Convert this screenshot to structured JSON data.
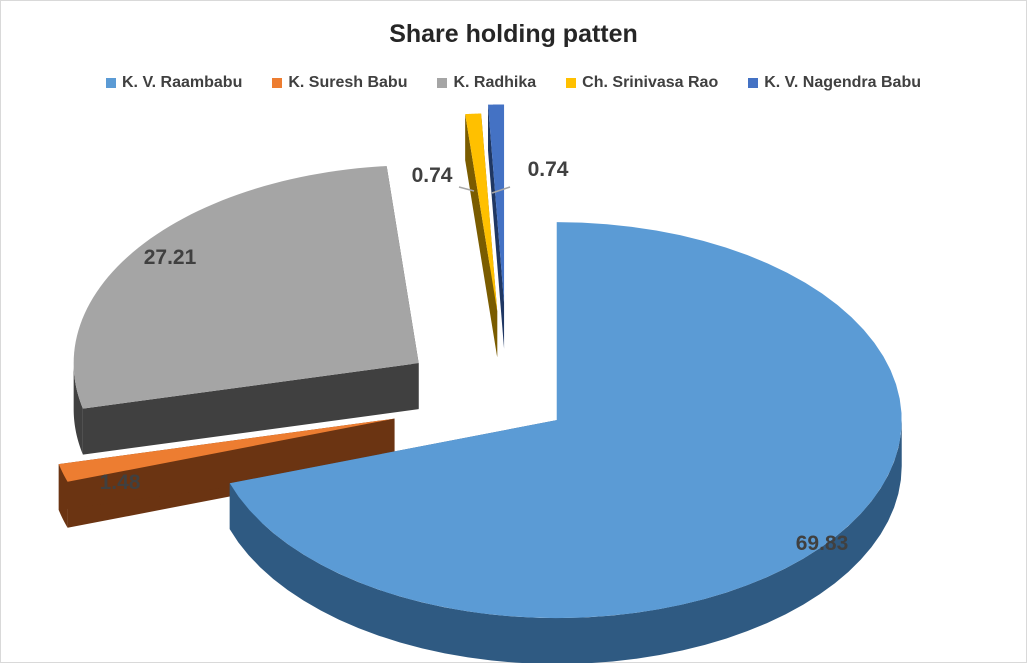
{
  "chart_data": {
    "type": "pie",
    "title": "Share holding patten",
    "legend_position": "top",
    "slices": [
      {
        "label": "K. V. Raambabu",
        "value": 69.83,
        "value_label": "69.83",
        "color": "#5B9BD5",
        "side_color": "#2F5A82"
      },
      {
        "label": "K. Suresh Babu",
        "value": 1.48,
        "value_label": "1.48",
        "color": "#ED7D31",
        "side_color": "#6B3412"
      },
      {
        "label": "K. Radhika",
        "value": 27.21,
        "value_label": "27.21",
        "color": "#A5A5A5",
        "side_color": "#404040"
      },
      {
        "label": "Ch. Srinivasa Rao",
        "value": 0.74,
        "value_label": "0.74",
        "color": "#FFC000",
        "side_color": "#7A5C00"
      },
      {
        "label": "K. V. Nagendra Babu",
        "value": 0.74,
        "value_label": "0.74",
        "color": "#4472C4",
        "side_color": "#1F3763"
      }
    ]
  }
}
